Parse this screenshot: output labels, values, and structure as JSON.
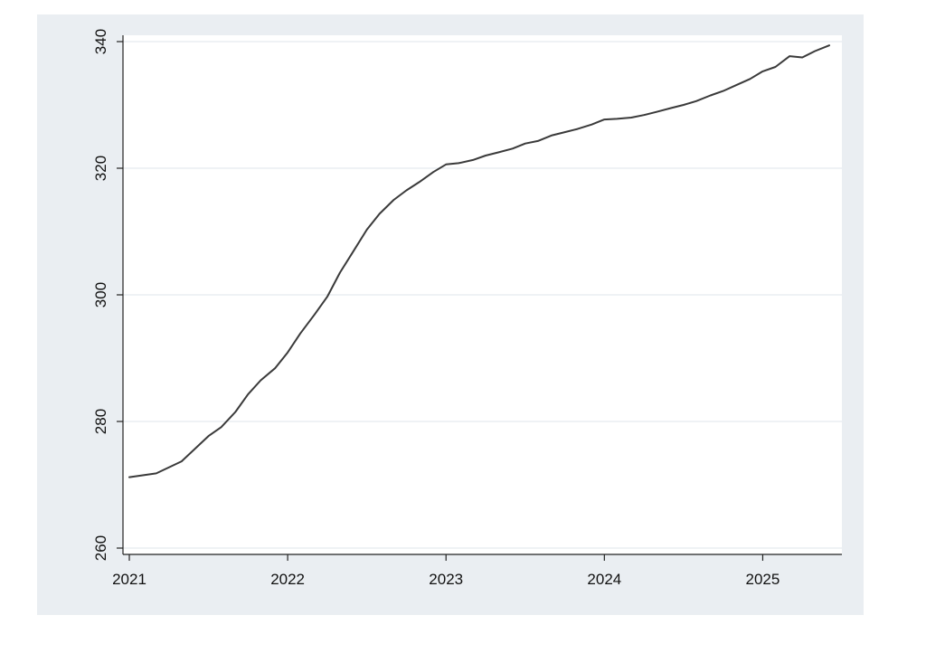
{
  "chart_data": {
    "type": "line",
    "title": "",
    "xlabel": "",
    "ylabel": "",
    "xlim": [
      2020.96,
      2025.5
    ],
    "ylim": [
      259,
      341
    ],
    "xticks": [
      2021,
      2022,
      2023,
      2024,
      2025
    ],
    "xtick_labels": [
      "2021",
      "2022",
      "2023",
      "2024",
      "2025"
    ],
    "yticks": [
      260,
      280,
      300,
      320,
      340
    ],
    "ytick_labels": [
      "260",
      "280",
      "300",
      "320",
      "340"
    ],
    "grid": "horizontal",
    "legend": "none",
    "colors": {
      "background": "#eaeef2",
      "plot_area": "#ffffff",
      "line": "#3a3a3a",
      "grid": "#eaeef2",
      "axis": "#222222"
    },
    "series": [
      {
        "x": [
          2021.0,
          2021.17,
          2021.33,
          2021.5,
          2021.58,
          2021.67,
          2021.75,
          2021.83,
          2021.92,
          2022.0,
          2022.08,
          2022.17,
          2022.25,
          2022.33,
          2022.42,
          2022.5,
          2022.58,
          2022.67,
          2022.75,
          2022.83,
          2022.92,
          2023.0,
          2023.08,
          2023.17,
          2023.25,
          2023.33,
          2023.42,
          2023.5,
          2023.58,
          2023.67,
          2023.75,
          2023.83,
          2023.92,
          2024.0,
          2024.08,
          2024.17,
          2024.25,
          2024.33,
          2024.42,
          2024.5,
          2024.58,
          2024.67,
          2024.75,
          2024.83,
          2024.92,
          2025.0,
          2025.08,
          2025.17,
          2025.25,
          2025.33,
          2025.42
        ],
        "y": [
          271.2,
          271.8,
          273.7,
          277.7,
          279.1,
          281.5,
          284.3,
          286.5,
          288.4,
          290.9,
          293.9,
          296.9,
          299.7,
          303.5,
          307.1,
          310.3,
          312.8,
          315.0,
          316.5,
          317.8,
          319.4,
          320.6,
          320.8,
          321.3,
          322.0,
          322.5,
          323.1,
          323.9,
          324.3,
          325.2,
          325.7,
          326.2,
          326.9,
          327.7,
          327.8,
          328.0,
          328.4,
          328.9,
          329.5,
          330.0,
          330.6,
          331.5,
          332.2,
          333.1,
          334.1,
          335.3,
          336.0,
          337.7,
          337.5,
          338.5,
          339.4
        ]
      }
    ]
  }
}
